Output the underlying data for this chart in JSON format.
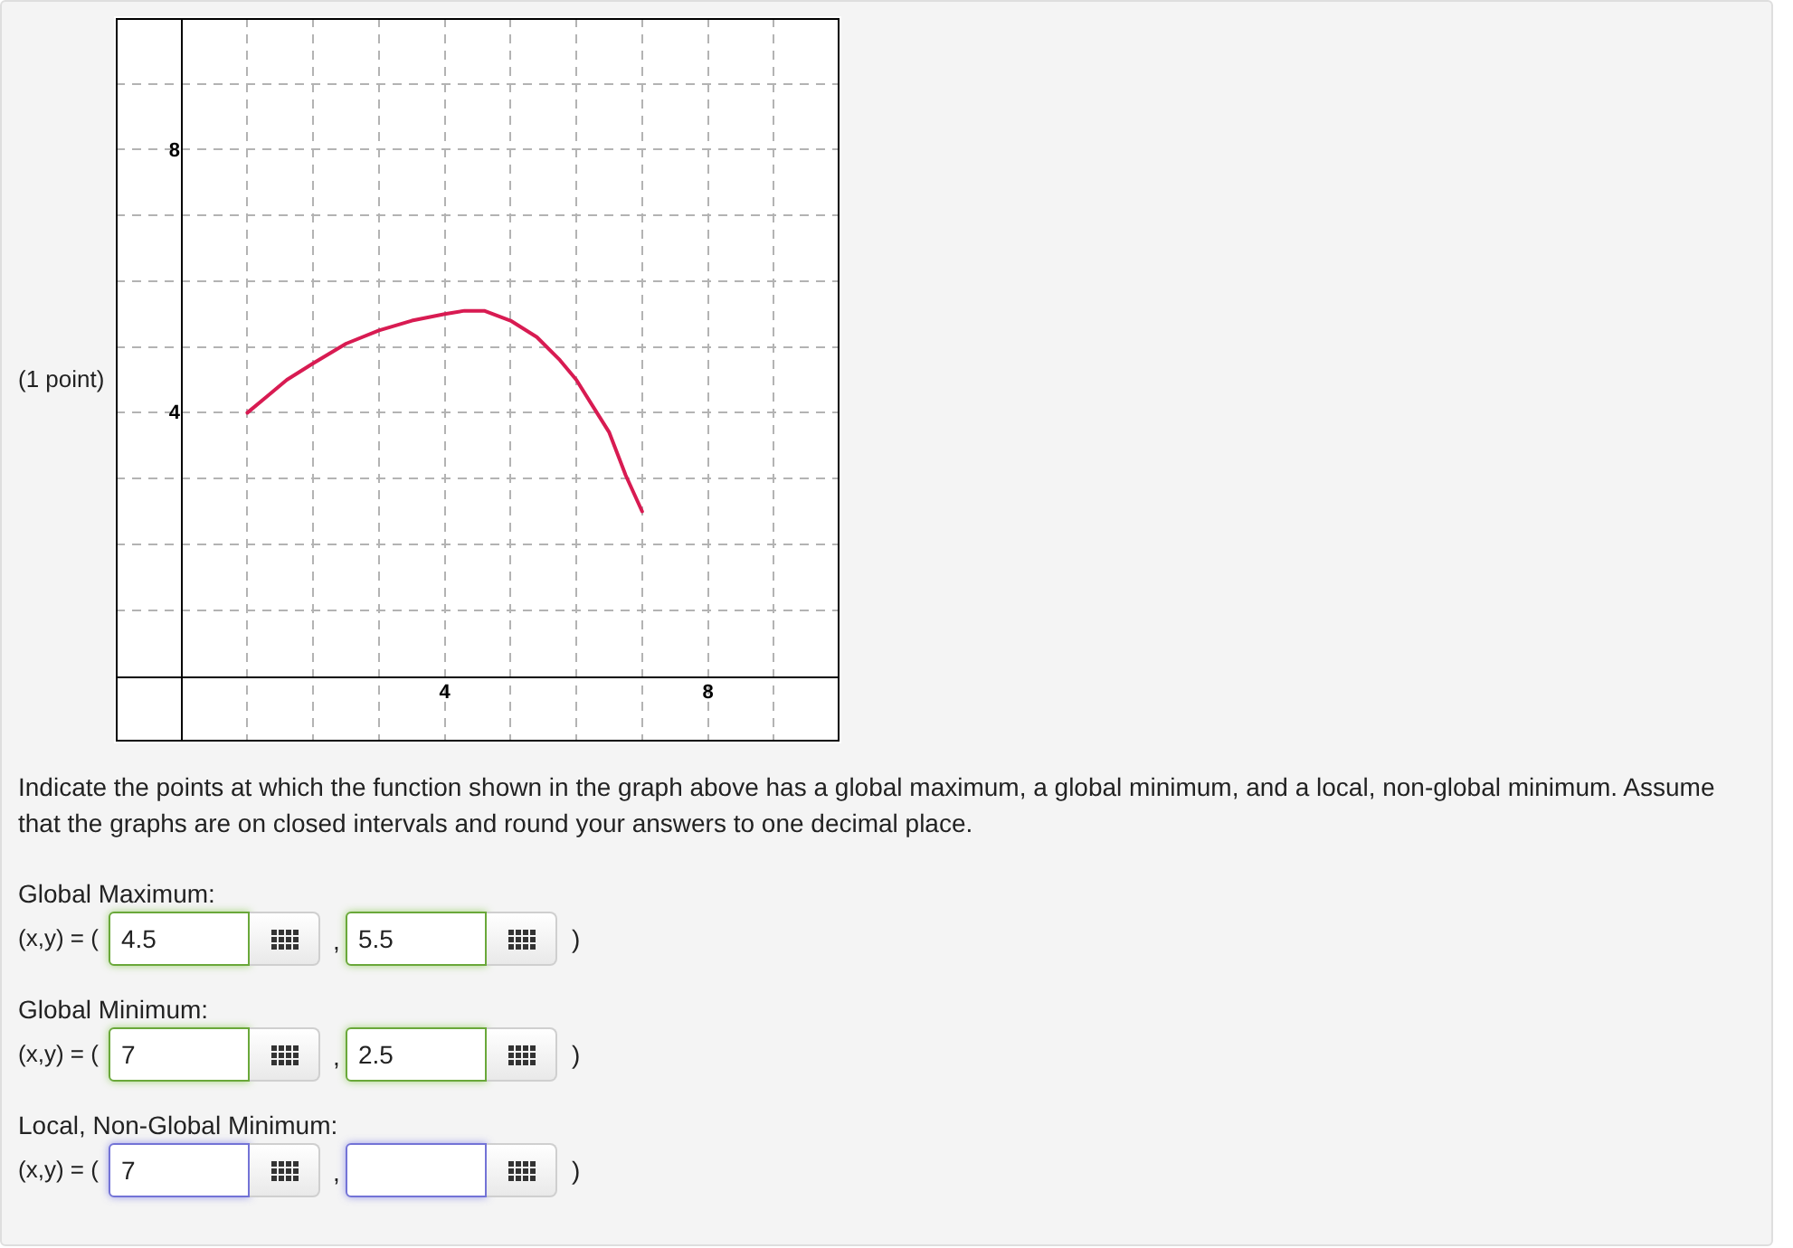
{
  "chart_data": {
    "type": "line",
    "x": [
      1,
      1.3,
      1.6,
      2,
      2.5,
      3,
      3.5,
      4,
      4.3,
      4.6,
      5,
      5.4,
      5.75,
      6,
      6.25,
      6.5,
      6.75,
      7
    ],
    "values": [
      4,
      4.25,
      4.5,
      4.75,
      5.05,
      5.25,
      5.4,
      5.5,
      5.55,
      5.55,
      5.4,
      5.15,
      4.8,
      4.5,
      4.1,
      3.7,
      3.05,
      2.5
    ],
    "color": "#d81b52",
    "marker": "none",
    "line_style": "solid",
    "xlim": [
      -1,
      10
    ],
    "ylim": [
      -1,
      10
    ],
    "xticks": [
      {
        "value": 1,
        "label": null
      },
      {
        "value": 2,
        "label": null
      },
      {
        "value": 3,
        "label": null
      },
      4,
      {
        "value": 5,
        "label": null
      },
      {
        "value": 6,
        "label": null
      },
      {
        "value": 7,
        "label": null
      },
      8,
      {
        "value": 9,
        "label": null
      }
    ],
    "yticks": [
      {
        "value": 1,
        "label": null
      },
      {
        "value": 2,
        "label": null
      },
      {
        "value": 3,
        "label": null
      },
      4,
      {
        "value": 5,
        "label": null
      },
      {
        "value": 6,
        "label": null
      },
      {
        "value": 7,
        "label": null
      },
      8,
      {
        "value": 9,
        "label": null
      }
    ],
    "grid": true,
    "annotations": [
      "(1 point)",
      "Indicate the points at which the function shown in the graph above has a global maximum, a global minimum, and a local, non-global minimum. Assume that the graphs are on closed intervals and round your answers to one decimal place.",
      "Global Maximum:",
      "(x,y) = (",
      "4.5",
      ",",
      "5.5",
      ")",
      "Global Minimum:",
      "(x,y) = (",
      "7",
      ",",
      "2.5",
      ")",
      "Local, Non-Global Minimum:",
      "(x,y) = (",
      "7",
      ",",
      ")"
    ]
  }
}
